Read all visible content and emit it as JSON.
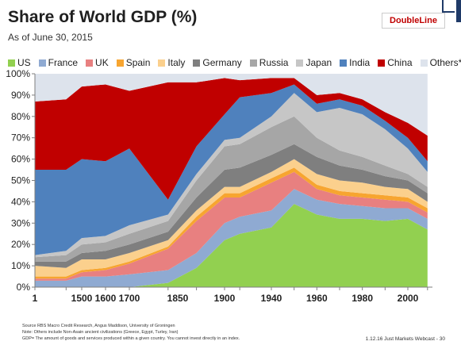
{
  "header": {
    "title": "Share of World GDP (%)",
    "subtitle": "As of June 30, 2015",
    "logo_text": "DoubleLine"
  },
  "footnotes": {
    "source": "Source RBS Macro Credit Research, Angus Maddison, University of Groningen",
    "note1": "Note: Others include Non-Asain ancient civilizations (Greece, Egypt, Turley, Iran)",
    "note2": "GDP= The amount of goods and services produced within a given country.  You cannot invest directly in  an  index.",
    "page_ref": "1.12.16 Just Markets Webcast - 30"
  },
  "chart_data": {
    "type": "area",
    "stacked": true,
    "title": "Share of World GDP (%)",
    "xlabel": "",
    "ylabel": "",
    "ylim": [
      0,
      100
    ],
    "x_ticks": [
      "1",
      "1500",
      "1600",
      "1700",
      "1850",
      "1900",
      "1940",
      "1960",
      "1980",
      "2000"
    ],
    "y_ticks": [
      "0%",
      "10%",
      "20%",
      "30%",
      "40%",
      "50%",
      "60%",
      "70%",
      "80%",
      "90%",
      "100%"
    ],
    "grid": false,
    "legend_position": "top",
    "x": [
      "1",
      "1000",
      "1500",
      "1600",
      "1700",
      "1820",
      "1870",
      "1900",
      "1913",
      "1940",
      "1950",
      "1960",
      "1970",
      "1980",
      "1990",
      "2000",
      "2008"
    ],
    "series": [
      {
        "name": "US",
        "color": "#92d050",
        "values": [
          0,
          0,
          0,
          0,
          0,
          2,
          9,
          22,
          25,
          28,
          39,
          34,
          32,
          32,
          31,
          32,
          27
        ]
      },
      {
        "name": "France",
        "color": "#8faad2",
        "values": [
          3,
          3,
          5,
          5,
          6,
          6,
          7,
          8,
          8,
          8,
          7,
          7,
          7,
          6,
          6,
          5,
          5
        ]
      },
      {
        "name": "UK",
        "color": "#e88080",
        "values": [
          1,
          1,
          2,
          3,
          5,
          10,
          15,
          12,
          9,
          13,
          8,
          5,
          4,
          4,
          4,
          3,
          3
        ]
      },
      {
        "name": "Spain",
        "color": "#f7a530",
        "values": [
          1,
          1,
          1,
          1,
          1,
          1,
          2,
          2,
          2,
          2,
          2,
          2,
          2,
          2,
          2,
          2,
          2
        ]
      },
      {
        "name": "Italy",
        "color": "#fbd08d",
        "values": [
          5,
          4,
          5,
          4,
          4,
          3,
          3,
          3,
          3,
          3,
          4,
          5,
          5,
          5,
          4,
          4,
          3
        ]
      },
      {
        "name": "Germany",
        "color": "#7f7f7f",
        "values": [
          2,
          3,
          3,
          4,
          4,
          4,
          6,
          8,
          9,
          8,
          7,
          8,
          7,
          6,
          5,
          4,
          4
        ]
      },
      {
        "name": "Russia",
        "color": "#a6a6a6",
        "values": [
          2,
          3,
          4,
          4,
          5,
          5,
          8,
          11,
          11,
          13,
          13,
          9,
          7,
          6,
          5,
          3,
          3
        ]
      },
      {
        "name": "Japan",
        "color": "#c6c6c6",
        "values": [
          1,
          2,
          3,
          3,
          4,
          3,
          3,
          3,
          3,
          5,
          11,
          12,
          20,
          20,
          17,
          12,
          7
        ]
      },
      {
        "name": "India",
        "color": "#4f81bd",
        "values": [
          40,
          38,
          37,
          35,
          36,
          7,
          13,
          12,
          19,
          11,
          4,
          4,
          4,
          4,
          4,
          5,
          5
        ]
      },
      {
        "name": "China",
        "color": "#c00000",
        "values": [
          32,
          33,
          34,
          36,
          27,
          55,
          30,
          17,
          8,
          7,
          3,
          4,
          3,
          3,
          4,
          7,
          12
        ]
      },
      {
        "name": "Others*",
        "color": "#dde3ec",
        "values": [
          13,
          12,
          6,
          5,
          8,
          4,
          4,
          2,
          3,
          2,
          2,
          10,
          9,
          12,
          18,
          23,
          29
        ]
      }
    ]
  }
}
